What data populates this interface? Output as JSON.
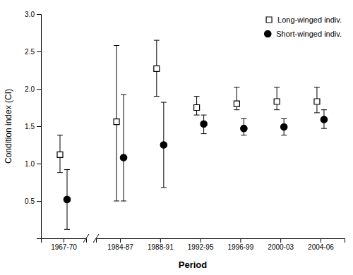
{
  "chart_data": {
    "type": "errorbar",
    "x_label": "Period",
    "y_label": "Condition index (CI)",
    "categories": [
      "1967-70",
      "1984-87",
      "1988-91",
      "1992-95",
      "1996-99",
      "2000-03",
      "2004-06"
    ],
    "series": [
      {
        "name": "Long-winged indiv.",
        "color": "#000000",
        "marker": "square",
        "values": [
          1.12,
          1.56,
          2.27,
          1.75,
          1.8,
          1.83,
          1.83
        ],
        "lower": [
          0.88,
          0.5,
          1.9,
          1.65,
          1.72,
          1.72,
          1.68
        ],
        "upper": [
          1.38,
          2.58,
          2.65,
          1.9,
          2.02,
          2.02,
          2.02
        ]
      },
      {
        "name": "Short-winged indiv.",
        "color": "#000000",
        "marker": "circle",
        "values": [
          0.52,
          1.08,
          1.25,
          1.53,
          1.47,
          1.49,
          1.59
        ],
        "lower": [
          0.12,
          0.5,
          0.68,
          1.4,
          1.38,
          1.38,
          1.47
        ],
        "upper": [
          0.92,
          1.92,
          1.82,
          1.65,
          1.6,
          1.6,
          1.72
        ]
      }
    ],
    "ylim": [
      0.0,
      3.0
    ],
    "yticks": [
      0.5,
      {
        "value": 1.0,
        "label": "1.0"
      },
      1.5,
      {
        "value": 2.0,
        "label": "2.0"
      },
      2.5,
      {
        "value": 3.0,
        "label": "3.0"
      }
    ],
    "grid": false,
    "legend": "upper right"
  }
}
